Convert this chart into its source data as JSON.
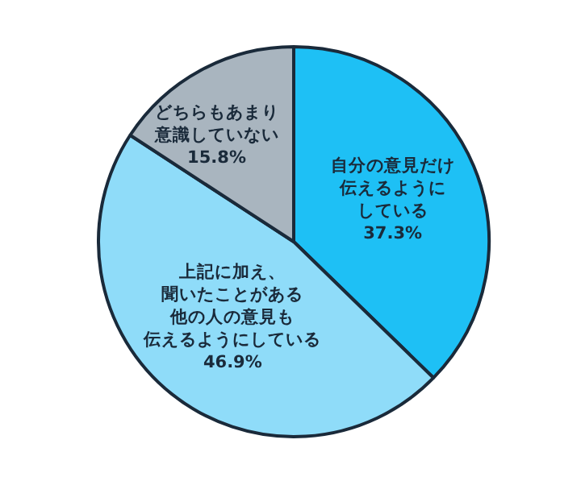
{
  "chart_data": {
    "type": "pie",
    "categories": [
      "自分の意見だけ伝えるようにしている",
      "上記に加え、聞いたことがある他の人の意見も伝えるようにしている",
      "どちらもあまり意識していない"
    ],
    "values": [
      37.3,
      46.9,
      15.8
    ],
    "value_labels": [
      "37.3%",
      "46.9%",
      "15.8%"
    ],
    "colors": [
      "#1ec0f5",
      "#8fdcf9",
      "#a9b5bf"
    ],
    "legend": false
  }
}
